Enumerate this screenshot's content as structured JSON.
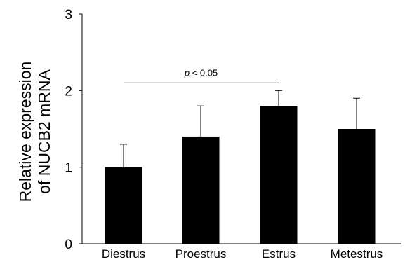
{
  "chart_data": {
    "type": "bar",
    "categories": [
      "Diestrus",
      "Proestrus",
      "Estrus",
      "Metestrus"
    ],
    "values": [
      1.0,
      1.4,
      1.8,
      1.5
    ],
    "error_upper": [
      0.3,
      0.4,
      0.2,
      0.4
    ],
    "ylim": [
      0,
      3
    ],
    "yticks": [
      "0",
      "1",
      "2",
      "3"
    ],
    "ylabel_line1": "Relative expression",
    "ylabel_line2": "of NUCB2 mRNA",
    "xlabel": "",
    "title": "",
    "grid": false,
    "bar_color": "#000000",
    "annotation": {
      "from_category": "Diestrus",
      "to_category": "Estrus",
      "y": 2.1,
      "p_symbol": "p",
      "p_rest": " < 0.05"
    }
  }
}
